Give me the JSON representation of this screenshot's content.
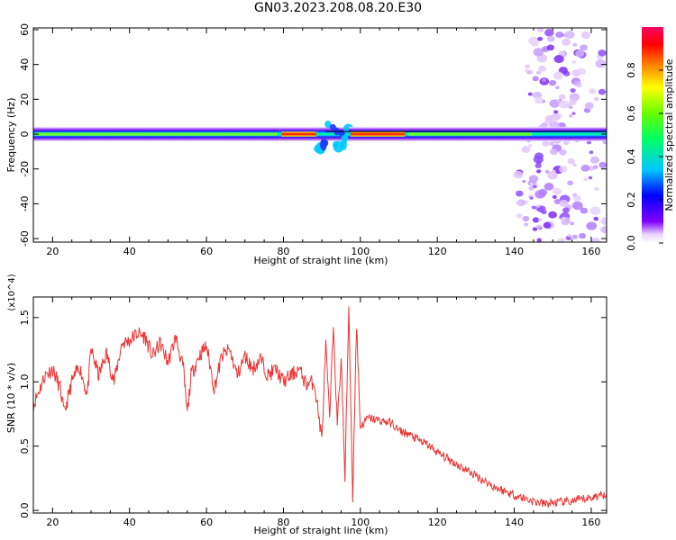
{
  "title": "GN03.2023.208.08.20.E30",
  "chart_data": [
    {
      "type": "heatmap",
      "xlabel": "Height of straight line (km)",
      "ylabel": "Frequency (Hz)",
      "xlim": [
        15,
        164
      ],
      "ylim": [
        -62,
        61
      ],
      "xticks": [
        20,
        40,
        60,
        80,
        100,
        120,
        140,
        160
      ],
      "yticks": [
        -60,
        -40,
        -20,
        0,
        20,
        40,
        60
      ],
      "colorbar": {
        "label": "Normalized spectral amplitude",
        "range": [
          0.0,
          1.0
        ],
        "ticks": [
          0.0,
          0.2,
          0.4,
          0.6,
          0.8
        ],
        "colormap": "rainbow (white-violet-blue-cyan-green-yellow-orange-red-magenta)"
      },
      "band": {
        "center_freq_hz": 0,
        "segments": [
          {
            "x": [
              15,
              79
            ],
            "peak": 0.55
          },
          {
            "x": [
              79,
              89
            ],
            "peak": 0.9
          },
          {
            "x": [
              89,
              97
            ],
            "peak": 0.3,
            "disturbed": true
          },
          {
            "x": [
              97,
              112
            ],
            "peak": 0.95
          },
          {
            "x": [
              112,
              145
            ],
            "peak": 0.6
          },
          {
            "x": [
              145,
              164
            ],
            "peak": 0.35
          }
        ],
        "noise_region_km": [
          141,
          164
        ]
      }
    },
    {
      "type": "line",
      "xlabel": "Height of straight line (km)",
      "ylabel": "SNR (10 * v/v)",
      "ylabel_exponent": "(x10^4)",
      "xlim": [
        15,
        164
      ],
      "ylim": [
        -0.02,
        1.66
      ],
      "xticks": [
        20,
        40,
        60,
        80,
        100,
        120,
        140,
        160
      ],
      "yticks": [
        0.0,
        0.5,
        1.0,
        1.5
      ],
      "line_color": "#ee3333",
      "series": [
        {
          "x": [
            15,
            18,
            20,
            22,
            23,
            25,
            27,
            29,
            30,
            32,
            34,
            36,
            38,
            40,
            42,
            44,
            46,
            48,
            50,
            52,
            54,
            55,
            56,
            58,
            60,
            62,
            64,
            66,
            68,
            70,
            72,
            74,
            76,
            78,
            80,
            82,
            84,
            86,
            88,
            90,
            91,
            92,
            93,
            94,
            95,
            96,
            97,
            98,
            99,
            100,
            102,
            105,
            108,
            110,
            112,
            115,
            118,
            120,
            125,
            130,
            135,
            140,
            145,
            148,
            150,
            155,
            160,
            164
          ],
          "values": [
            0.82,
            1.05,
            1.1,
            0.95,
            0.75,
            1.0,
            1.12,
            0.9,
            1.25,
            1.05,
            1.22,
            1.0,
            1.3,
            1.32,
            1.38,
            1.35,
            1.2,
            1.3,
            1.15,
            1.35,
            1.1,
            0.75,
            1.05,
            1.2,
            1.28,
            0.95,
            1.2,
            1.25,
            1.05,
            1.2,
            1.1,
            1.18,
            1.05,
            1.1,
            1.0,
            1.05,
            1.1,
            0.98,
            1.0,
            0.55,
            1.3,
            0.7,
            1.45,
            0.65,
            1.2,
            0.25,
            1.6,
            0.1,
            1.45,
            0.65,
            0.72,
            0.7,
            0.68,
            0.62,
            0.6,
            0.55,
            0.5,
            0.45,
            0.36,
            0.27,
            0.18,
            0.12,
            0.07,
            0.05,
            0.06,
            0.07,
            0.1,
            0.13
          ]
        }
      ]
    }
  ]
}
